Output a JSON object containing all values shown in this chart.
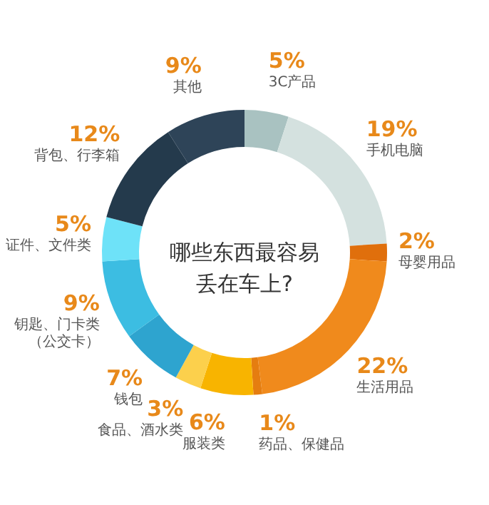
{
  "chart_data": {
    "type": "donut",
    "title": "哪些东西最容易丢在车上?",
    "categories": [
      "3C产品",
      "手机电脑",
      "母婴用品",
      "生活用品",
      "药品、保健品",
      "服装类",
      "食品、酒水类",
      "钱包",
      "钥匙、门卡类（公交卡）",
      "证件、文件类",
      "背包、行李箱",
      "其他"
    ],
    "values": [
      5,
      19,
      2,
      22,
      1,
      6,
      3,
      7,
      9,
      5,
      12,
      9
    ],
    "colors": [
      "#a9c2c1",
      "#d4e1df",
      "#e06f0c",
      "#f08a1c",
      "#e57d10",
      "#f8b400",
      "#fcd04c",
      "#2ea4cf",
      "#3cbde2",
      "#6ee2f8",
      "#243a4c",
      "#2e4458"
    ],
    "value_labels": [
      "5%",
      "19%",
      "2%",
      "22%",
      "1%",
      "6%",
      "3%",
      "7%",
      "9%",
      "5%",
      "12%",
      "9%"
    ]
  }
}
